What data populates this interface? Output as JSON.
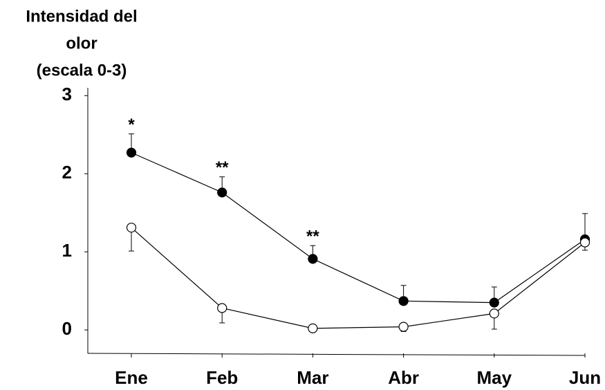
{
  "chart_data": {
    "type": "line",
    "y_label": [
      "Intensidad del",
      "olor",
      "(escala 0-3)"
    ],
    "categories": [
      "Ene",
      "Feb",
      "Mar",
      "Abr",
      "May",
      "Jun"
    ],
    "ylim": [
      -0.3,
      3.1
    ],
    "yticks": [
      0,
      1,
      2,
      3
    ],
    "series": [
      {
        "color": "#000000",
        "marker_fill": "#000000",
        "error_direction": "up",
        "values": [
          2.27,
          1.76,
          0.91,
          0.37,
          0.35,
          1.16
        ],
        "errors": [
          0.24,
          0.2,
          0.17,
          0.2,
          0.2,
          0.33
        ]
      },
      {
        "color": "#000000",
        "marker_fill": "#ffffff",
        "error_direction": "down",
        "values": [
          1.31,
          0.28,
          0.02,
          0.04,
          0.21,
          1.12
        ],
        "errors": [
          0.3,
          0.19,
          0.02,
          0.06,
          0.2,
          0.1
        ]
      }
    ],
    "annotations": [
      {
        "text": "*",
        "x": "Ene"
      },
      {
        "text": "**",
        "x": "Feb"
      },
      {
        "text": "**",
        "x": "Mar"
      }
    ]
  }
}
